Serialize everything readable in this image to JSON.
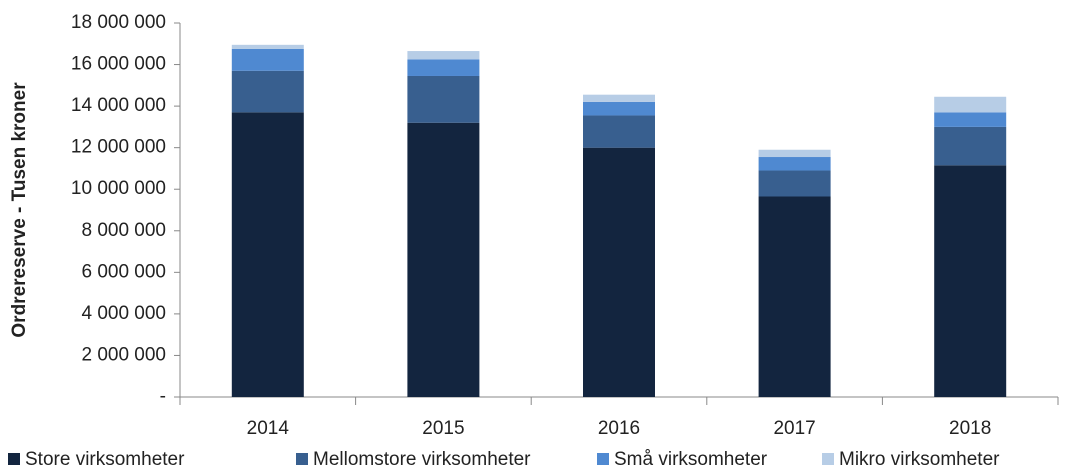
{
  "chart_data": {
    "type": "stacked_bar",
    "y_label": "Ordrereserve - Tusen kroner",
    "categories": [
      "2014",
      "2015",
      "2016",
      "2017",
      "2018"
    ],
    "series": [
      {
        "name": "Store virksomheter",
        "color": "#13253f",
        "values": [
          13700000,
          13200000,
          12000000,
          9650000,
          11150000
        ]
      },
      {
        "name": "Mellomstore virksomheter",
        "color": "#385f8f",
        "values": [
          2000000,
          2250000,
          1550000,
          1250000,
          1850000
        ]
      },
      {
        "name": "Små virksomheter",
        "color": "#4f89d1",
        "values": [
          1050000,
          800000,
          650000,
          650000,
          700000
        ]
      },
      {
        "name": "Mikro virksomheter",
        "color": "#b7cde6",
        "values": [
          200000,
          400000,
          350000,
          350000,
          750000
        ]
      }
    ],
    "ylim": [
      0,
      18000000
    ],
    "yticks": [
      {
        "value": 0,
        "label": "-"
      },
      {
        "value": 2000000,
        "label": "2 000 000"
      },
      {
        "value": 4000000,
        "label": "4 000 000"
      },
      {
        "value": 6000000,
        "label": "6 000 000"
      },
      {
        "value": 8000000,
        "label": "8 000 000"
      },
      {
        "value": 10000000,
        "label": "10 000 000"
      },
      {
        "value": 12000000,
        "label": "12 000 000"
      },
      {
        "value": 14000000,
        "label": "14 000 000"
      },
      {
        "value": 16000000,
        "label": "16 000 000"
      },
      {
        "value": 18000000,
        "label": "18 000 000"
      }
    ],
    "grid": false,
    "legend": "bottom"
  }
}
